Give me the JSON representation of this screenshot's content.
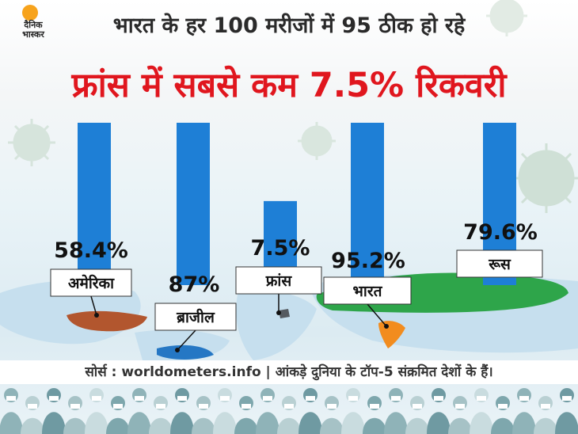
{
  "brand": {
    "logo_text_line1": "दैनिक",
    "logo_text_line2": "भास्कर",
    "accent": "#f7a31c"
  },
  "subtitle": "भारत के हर 100 मरीजों में 95 ठीक हो रहे",
  "title": "फ्रांस में सबसे कम 7.5% रिकवरी",
  "source": "सोर्स : worldometers.info | आंकड़े दुनिया के टॉप-5 संक्रमित देशों के हैं।",
  "colors": {
    "bar": "#1e7fd6",
    "title": "#e0161e"
  },
  "chart_data": {
    "type": "bar",
    "categories": [
      "अमेरिका",
      "ब्राजील",
      "फ्रांस",
      "भारत",
      "रूस"
    ],
    "values": [
      58.4,
      87,
      7.5,
      95.2,
      79.6
    ],
    "value_labels": [
      "58.4%",
      "87%",
      "7.5%",
      "95.2%",
      "79.6%"
    ],
    "title": "फ्रांस में सबसे कम 7.5% रिकवरी",
    "subtitle": "भारत के हर 100 मरीजों में 95 ठीक हो रहे",
    "xlabel": "",
    "ylabel": "",
    "grid": false,
    "legend": "none"
  }
}
